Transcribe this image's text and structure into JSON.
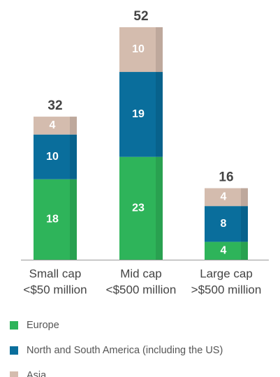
{
  "chart_data": {
    "type": "stacked-bar",
    "categories": [
      [
        "Small cap",
        "<$50 million"
      ],
      [
        "Mid cap",
        "<$500 million"
      ],
      [
        "Large cap",
        ">$500 million"
      ]
    ],
    "series": [
      {
        "name": "Europe",
        "color": "#2eb45a",
        "values": [
          18,
          23,
          4
        ]
      },
      {
        "name": "North and South America (including the US)",
        "color": "#0a6e9c",
        "values": [
          10,
          19,
          8
        ]
      },
      {
        "name": "Asia",
        "color": "#d4bcae",
        "values": [
          4,
          10,
          4
        ]
      }
    ],
    "totals": [
      32,
      52,
      16
    ]
  }
}
